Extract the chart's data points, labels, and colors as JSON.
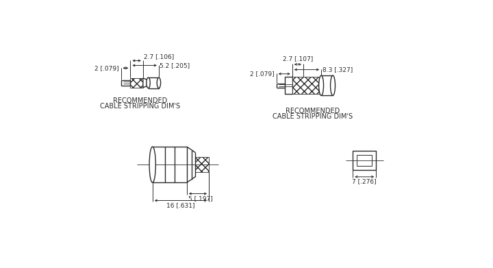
{
  "bg_color": "#ffffff",
  "line_color": "#2a2a2a",
  "top_left": {
    "label1": "2 [.079]",
    "label2": "2.7 [.106]",
    "label3": "5.2 [.205]",
    "caption_line1": "RECOMMENDED",
    "caption_line2": "CABLE STRIPPING DIM'S"
  },
  "top_right": {
    "label1": "2 [.079]",
    "label2": "2.7 [.107]",
    "label3": "8.3 [.327]",
    "caption_line1": "RECOMMENDED",
    "caption_line2": "CABLE STRIPPING DIM'S"
  },
  "bottom_main": {
    "label1": "5 [.197]",
    "label2": "16 [.631]"
  },
  "bottom_right": {
    "label1": "7 [.276]"
  }
}
